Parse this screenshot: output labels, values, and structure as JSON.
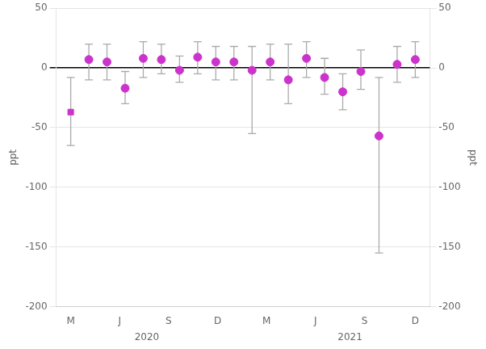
{
  "chart_data": {
    "type": "scatter",
    "series": [
      {
        "marker": "square",
        "color": "#CC33CC",
        "error_color": "#AAAAAA",
        "x": [
          0
        ],
        "values": [
          -37
        ],
        "error_low": [
          -65
        ],
        "error_high": [
          -8
        ]
      },
      {
        "marker": "circle",
        "color": "#CC33CC",
        "error_color": "#AAAAAA",
        "x": [
          1,
          2,
          3,
          4,
          5,
          6,
          7,
          8,
          9,
          10,
          11,
          12,
          13,
          14,
          15,
          16,
          17,
          18,
          19
        ],
        "values": [
          7,
          5,
          -17,
          8,
          7,
          -2,
          9,
          5,
          5,
          -2,
          5,
          -10,
          8,
          -8,
          -20,
          -3,
          -57,
          3,
          7
        ],
        "error_low": [
          -10,
          -10,
          -30,
          -8,
          -5,
          -12,
          -5,
          -10,
          -10,
          -55,
          -10,
          -30,
          -8,
          -22,
          -35,
          -18,
          -155,
          -12,
          -8
        ],
        "error_high": [
          20,
          20,
          -3,
          22,
          20,
          10,
          22,
          18,
          18,
          18,
          20,
          20,
          22,
          8,
          -5,
          15,
          -8,
          18,
          22
        ]
      }
    ],
    "xlim": [
      -0.8,
      19.8
    ],
    "xticks": [
      {
        "value": 0,
        "label": "M"
      },
      {
        "value": 2.7,
        "label": "J"
      },
      {
        "value": 5.4,
        "label": "S"
      },
      {
        "value": 8.1,
        "label": "D"
      },
      {
        "value": 10.8,
        "label": "M"
      },
      {
        "value": 13.5,
        "label": "J"
      },
      {
        "value": 16.2,
        "label": "S"
      },
      {
        "value": 19,
        "label": "D"
      }
    ],
    "ylim": [
      -200,
      50
    ],
    "yticks": [
      50,
      0,
      -50,
      -100,
      -150,
      -200
    ],
    "y2lim": [
      -200,
      50
    ],
    "y2ticks": [
      50,
      0,
      -50,
      -100,
      -150,
      -200
    ],
    "ylabel": "ppt",
    "y2label": "ppt",
    "annotations": [
      {
        "text": "2020",
        "x": 4.2
      },
      {
        "text": "2021",
        "x": 15.4
      }
    ],
    "grid": true
  }
}
